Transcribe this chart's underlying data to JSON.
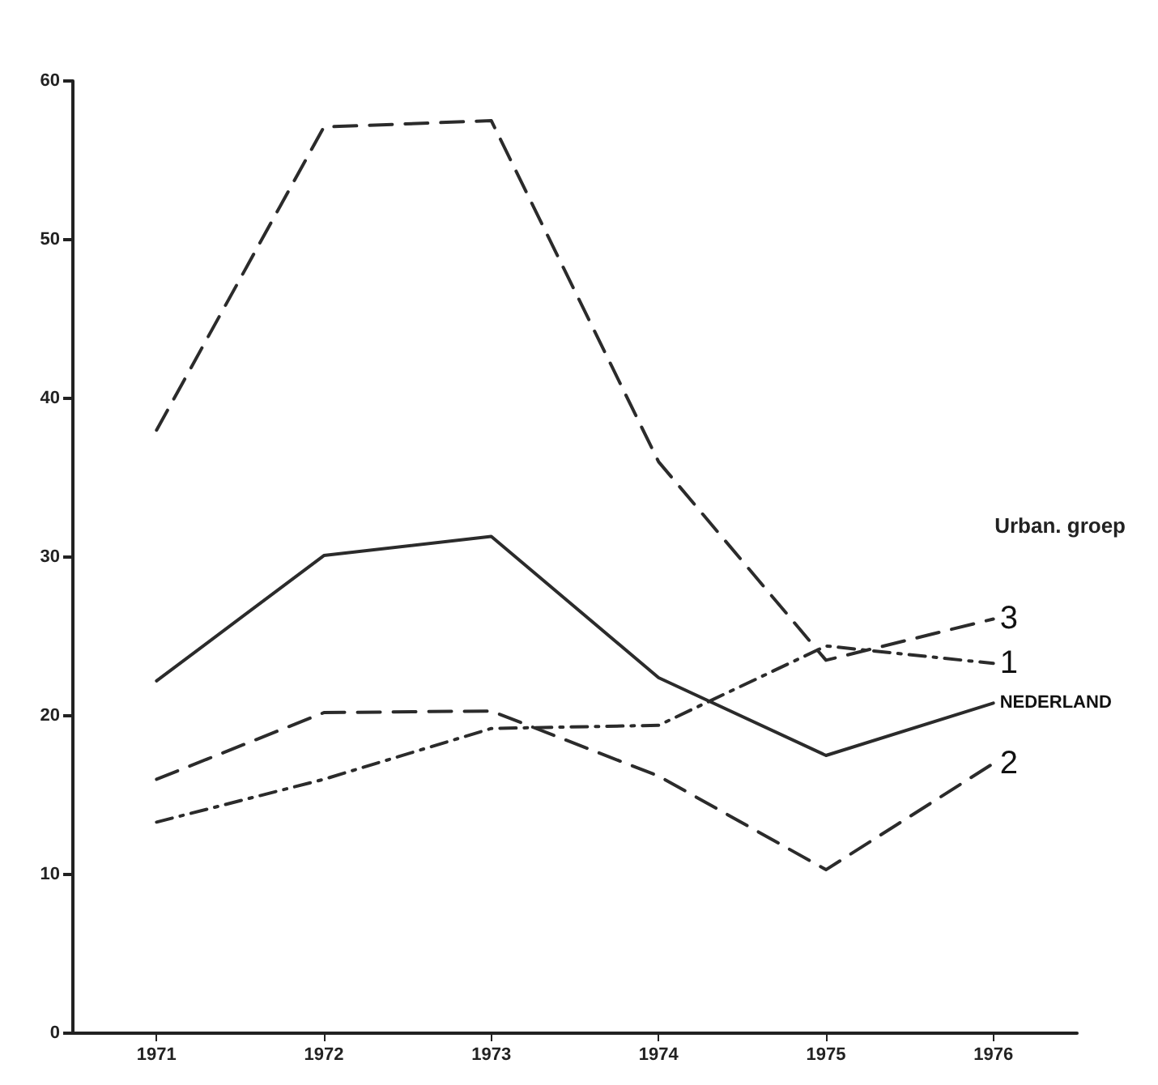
{
  "chart_data": {
    "type": "line",
    "legend_title": "Urban. groep",
    "categories": [
      "1971",
      "1972",
      "1973",
      "1974",
      "1975",
      "1976"
    ],
    "ylim": [
      0,
      60
    ],
    "yticks": [
      0,
      10,
      20,
      30,
      40,
      50,
      60
    ],
    "grid": false,
    "legend": false,
    "marker": "none",
    "series": [
      {
        "name": "3",
        "color": "#2b2b2b",
        "line_style": "dashed",
        "values": [
          38,
          57.1,
          57.5,
          36,
          23.5,
          26.1
        ]
      },
      {
        "name": "1",
        "color": "#2b2b2b",
        "line_style": "dashdot",
        "values": [
          13.3,
          16,
          19.2,
          19.4,
          24.4,
          23.3
        ]
      },
      {
        "name": "NEDERLAND",
        "color": "#2b2b2b",
        "line_style": "solid",
        "values": [
          22.2,
          30.1,
          31.3,
          22.4,
          17.5,
          20.8
        ]
      },
      {
        "name": "2",
        "color": "#2b2b2b",
        "line_style": "dashed",
        "values": [
          16,
          20.2,
          20.3,
          16.2,
          10.3,
          17
        ]
      }
    ]
  }
}
